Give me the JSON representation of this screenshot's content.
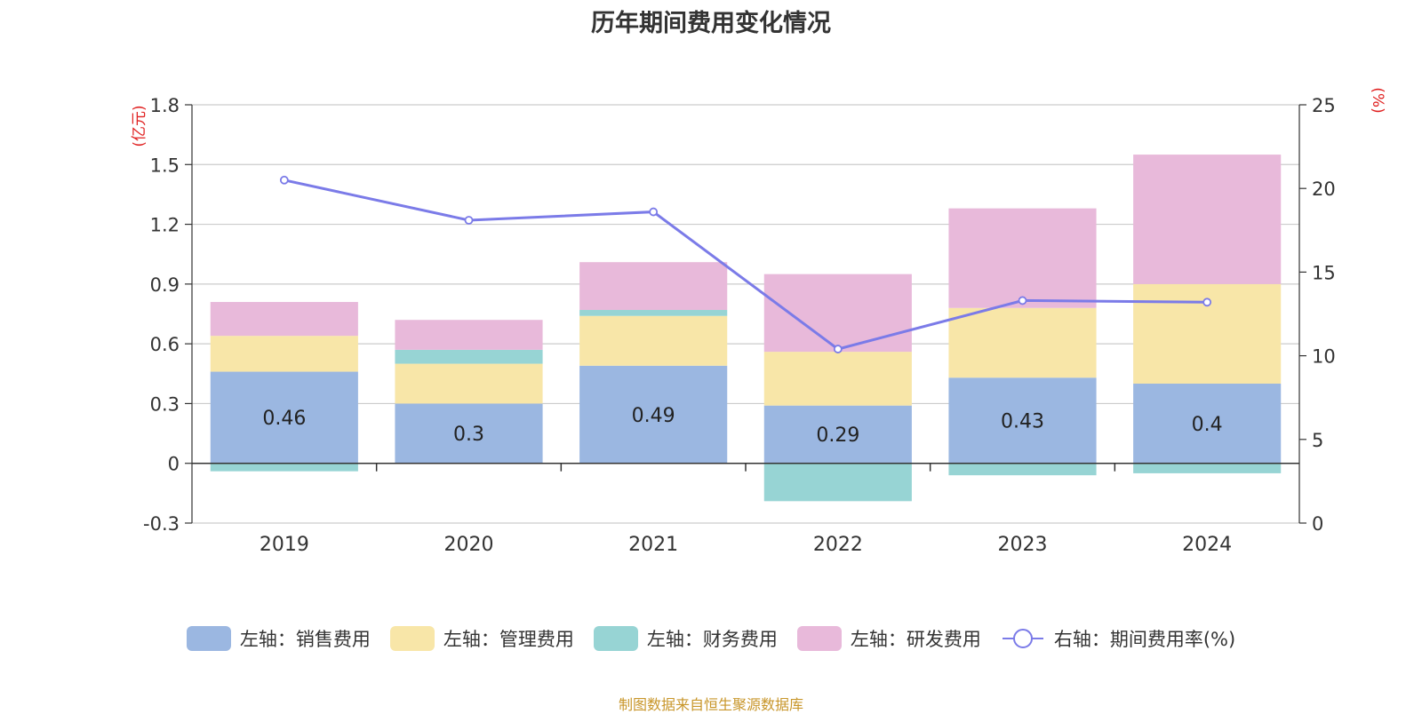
{
  "chart_data": {
    "type": "bar",
    "stacked": true,
    "title": "历年期间费用变化情况",
    "categories": [
      "2019",
      "2020",
      "2021",
      "2022",
      "2023",
      "2024"
    ],
    "series": [
      {
        "name": "左轴：销售费用",
        "axis": "left",
        "color": "#9bb7e1",
        "values": [
          0.46,
          0.3,
          0.49,
          0.29,
          0.43,
          0.4
        ],
        "labels": [
          "0.46",
          "0.3",
          "0.49",
          "0.29",
          "0.43",
          "0.4"
        ]
      },
      {
        "name": "左轴：管理费用",
        "axis": "left",
        "color": "#f8e6a8",
        "values": [
          0.18,
          0.2,
          0.25,
          0.27,
          0.35,
          0.5
        ]
      },
      {
        "name": "左轴：财务费用",
        "axis": "left",
        "color": "#97d4d4",
        "values": [
          -0.04,
          0.07,
          0.03,
          -0.19,
          -0.06,
          -0.05
        ]
      },
      {
        "name": "左轴：研发费用",
        "axis": "left",
        "color": "#e8b9da",
        "values": [
          0.17,
          0.15,
          0.24,
          0.39,
          0.5,
          0.65
        ]
      },
      {
        "name": "右轴：期间费用率(%)",
        "axis": "right",
        "type": "line",
        "color": "#7b7be8",
        "values": [
          20.5,
          18.1,
          18.6,
          10.4,
          13.3,
          13.2
        ]
      }
    ],
    "left_axis": {
      "unit": "(亿元)",
      "ylim": [
        -0.3,
        1.8
      ],
      "ticks": [
        "-0.3",
        "0",
        "0.3",
        "0.6",
        "0.9",
        "1.2",
        "1.5",
        "1.8"
      ]
    },
    "right_axis": {
      "unit": "(%)",
      "ylim": [
        0,
        25
      ],
      "ticks": [
        "0",
        "5",
        "10",
        "15",
        "20",
        "25"
      ]
    },
    "grid": true,
    "legend_position": "bottom"
  },
  "source_note": "制图数据来自恒生聚源数据库"
}
